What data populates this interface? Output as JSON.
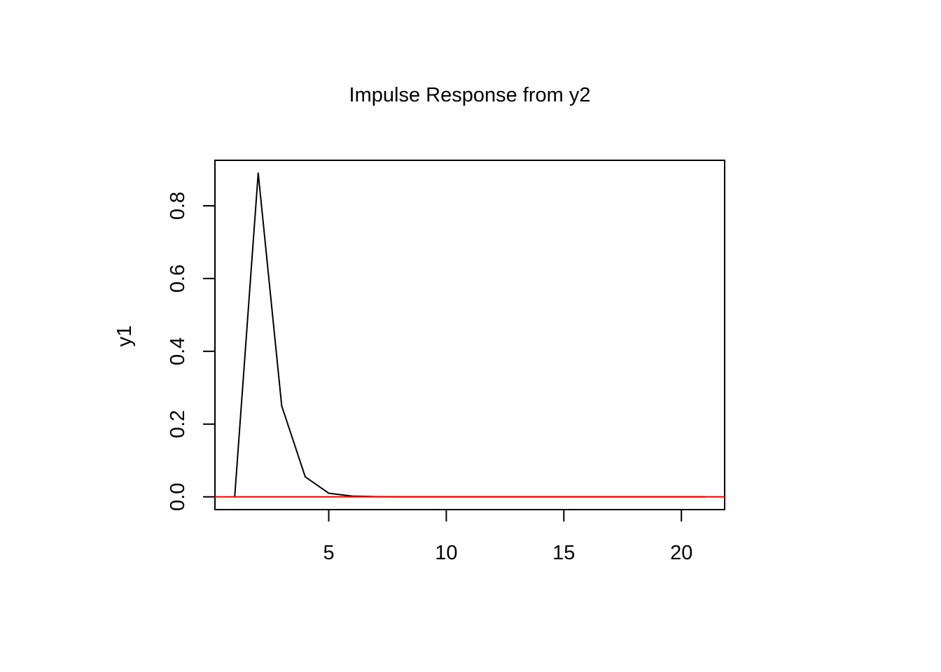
{
  "chart_data": {
    "type": "line",
    "title": "Impulse Response from y2",
    "xlabel": "",
    "ylabel": "y1",
    "xlim": [
      0.16,
      21.84
    ],
    "ylim": [
      -0.035,
      0.925
    ],
    "x_ticks": [
      5,
      10,
      15,
      20
    ],
    "x_tick_labels": [
      "5",
      "10",
      "15",
      "20"
    ],
    "y_ticks": [
      0.0,
      0.2,
      0.4,
      0.6,
      0.8
    ],
    "y_tick_labels": [
      "0.0",
      "0.2",
      "0.4",
      "0.6",
      "0.8"
    ],
    "grid": false,
    "legend": "none",
    "series": [
      {
        "color": "#000000",
        "x": [
          1,
          2,
          3,
          4,
          5,
          6,
          7,
          8,
          9,
          10,
          11,
          12,
          13,
          14,
          15,
          16,
          17,
          18,
          19,
          20,
          21
        ],
        "values": [
          0.0,
          0.89,
          0.25,
          0.055,
          0.01,
          0.002,
          0.0005,
          0.0001,
          0.0,
          0.0,
          0.0,
          0.0,
          0.0,
          0.0,
          0.0,
          0.0,
          0.0,
          0.0,
          0.0,
          0.0,
          0.0
        ]
      }
    ],
    "reference_line": {
      "y": 0,
      "color": "#ff0000"
    }
  }
}
